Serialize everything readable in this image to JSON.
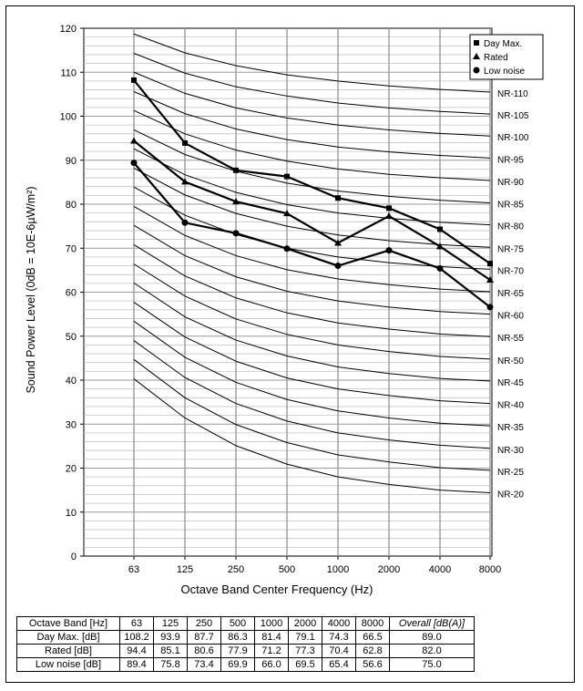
{
  "chart_data": {
    "type": "line",
    "ylabel": "Sound Power Level (0dB = 10E-6µW/m²)",
    "xlabel": "Octave Band Center Frequency (Hz)",
    "categories": [
      "63",
      "125",
      "250",
      "500",
      "1000",
      "2000",
      "4000",
      "8000"
    ],
    "ylim": [
      0,
      120
    ],
    "yticks": [
      0,
      10,
      20,
      30,
      40,
      50,
      60,
      70,
      80,
      90,
      100,
      110,
      120
    ],
    "grid": true,
    "legend_position": "top-right",
    "series": [
      {
        "name": "Day Max.",
        "marker": "square",
        "values": [
          108.2,
          93.9,
          87.7,
          86.3,
          81.4,
          79.1,
          74.3,
          66.5
        ]
      },
      {
        "name": "Rated",
        "marker": "triangle",
        "values": [
          94.4,
          85.1,
          80.6,
          77.9,
          71.2,
          77.3,
          70.4,
          62.8
        ]
      },
      {
        "name": "Low noise",
        "marker": "circle",
        "values": [
          89.4,
          75.8,
          73.4,
          69.9,
          66.0,
          69.5,
          65.4,
          56.6
        ]
      }
    ],
    "nr_curves": {
      "labels": [
        "NR-110",
        "NR-105",
        "NR-100",
        "NR-95",
        "NR-90",
        "NR-85",
        "NR-80",
        "NR-75",
        "NR-70",
        "NR-65",
        "NR-60",
        "NR-55",
        "NR-50",
        "NR-45",
        "NR-40",
        "NR-35",
        "NR-30",
        "NR-25",
        "NR-20"
      ],
      "levels_63_to_8000": [
        [
          118.7,
          114.4,
          111.5,
          109.4,
          108,
          106.9,
          106.1,
          105.5
        ],
        [
          114.3,
          109.8,
          106.7,
          104.6,
          103,
          101.9,
          101.1,
          100.5
        ],
        [
          110.0,
          105.2,
          101.9,
          99.6,
          98,
          96.9,
          96.1,
          95.5
        ],
        [
          105.6,
          100.6,
          97.1,
          94.7,
          93,
          91.9,
          91.1,
          90.5
        ],
        [
          101.3,
          96.0,
          92.3,
          89.8,
          88,
          86.8,
          86.0,
          85.4
        ],
        [
          96.9,
          91.3,
          87.5,
          84.8,
          83,
          81.8,
          80.9,
          80.3
        ],
        [
          92.6,
          86.7,
          82.7,
          79.9,
          78,
          76.8,
          75.9,
          75.3
        ],
        [
          88.2,
          82.1,
          77.9,
          75.0,
          73,
          71.7,
          70.8,
          70.2
        ],
        [
          83.9,
          77.5,
          73.1,
          70.0,
          68,
          66.7,
          65.8,
          65.2
        ],
        [
          79.5,
          72.9,
          68.3,
          65.1,
          63,
          61.7,
          60.7,
          60.1
        ],
        [
          75.2,
          68.3,
          63.5,
          60.2,
          58,
          56.6,
          55.6,
          55.0
        ],
        [
          70.8,
          63.7,
          58.7,
          55.3,
          53,
          51.6,
          50.5,
          49.9
        ],
        [
          66.4,
          59.1,
          53.9,
          50.4,
          48,
          46.5,
          45.4,
          44.8
        ],
        [
          62.1,
          54.4,
          49.1,
          45.5,
          43,
          41.5,
          40.4,
          39.8
        ],
        [
          57.7,
          49.8,
          44.3,
          40.5,
          38,
          36.5,
          35.3,
          34.7
        ],
        [
          53.4,
          45.2,
          39.5,
          35.6,
          33,
          31.4,
          30.2,
          29.6
        ],
        [
          49.0,
          40.6,
          34.7,
          30.7,
          28,
          26.4,
          25.2,
          24.5
        ],
        [
          44.7,
          36.0,
          29.9,
          25.8,
          23,
          21.4,
          20.1,
          19.5
        ],
        [
          40.3,
          31.4,
          25.1,
          20.9,
          18,
          16.3,
          15.0,
          14.4
        ]
      ]
    }
  },
  "table": {
    "header": [
      "Octave Band [Hz]",
      "63",
      "125",
      "250",
      "500",
      "1000",
      "2000",
      "4000",
      "8000",
      "Overall [dB(A)]"
    ],
    "rows": [
      [
        "Day Max. [dB]",
        "108.2",
        "93.9",
        "87.7",
        "86.3",
        "81.4",
        "79.1",
        "74.3",
        "66.5",
        "89.0"
      ],
      [
        "Rated [dB]",
        "94.4",
        "85.1",
        "80.6",
        "77.9",
        "71.2",
        "77.3",
        "70.4",
        "62.8",
        "82.0"
      ],
      [
        "Low noise [dB]",
        "89.4",
        "75.8",
        "73.4",
        "69.9",
        "66.0",
        "69.5",
        "65.4",
        "56.6",
        "75.0"
      ]
    ]
  }
}
